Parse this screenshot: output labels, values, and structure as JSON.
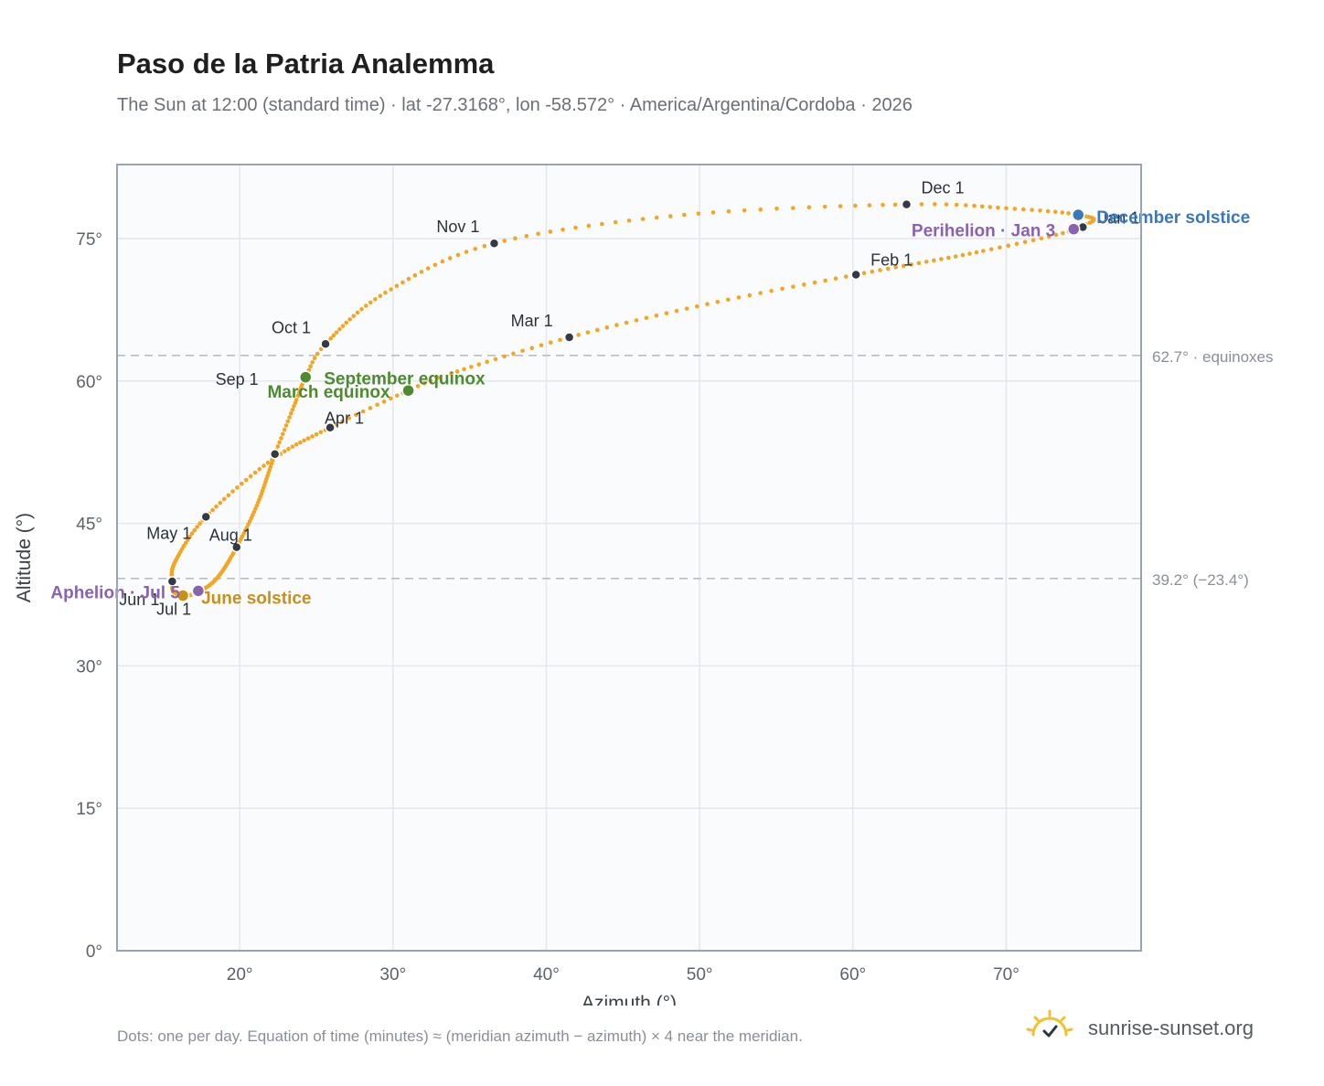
{
  "title": "Paso de la Patria Analemma",
  "subtitle": "The Sun at 12:00 (standard time) · lat -27.3168°, lon -58.572° · America/Argentina/Cordoba · 2026",
  "footnote": "Dots: one per day. Equation of time (minutes) ≈ (meridian azimuth − azimuth) × 4 near the meridian.",
  "brand": {
    "text": "sunrise-sunset.org",
    "icon": "sun-logo-icon",
    "color": "#f2c12e"
  },
  "colors": {
    "curve": "#f3a623",
    "month_marker": "#333a45",
    "equinox": "#4e8a2e",
    "june_solstice": "#c8901a",
    "december_solstice": "#3a78b9",
    "apsis": "#8a63b0",
    "reference_line": "#b9bec6",
    "plot_bg": "#f9fbfd",
    "grid": "#e3e8ee",
    "frame": "#9aa4b1"
  },
  "chart_data": {
    "type": "scatter",
    "title": "Paso de la Patria Analemma",
    "xlabel": "Azimuth (°)",
    "ylabel": "Altitude (°)",
    "xlim": [
      12.0,
      78.8
    ],
    "ylim": [
      0,
      82.8
    ],
    "xticks": [
      20,
      30,
      40,
      50,
      60,
      70
    ],
    "yticks": [
      0,
      15,
      30,
      45,
      60,
      75
    ],
    "xtick_labels": [
      "20°",
      "30°",
      "40°",
      "50°",
      "60°",
      "70°"
    ],
    "ytick_labels": [
      "0°",
      "15°",
      "30°",
      "45°",
      "60°",
      "75°"
    ],
    "grid": true,
    "curve_keypoints": [
      {
        "day": 1,
        "az": 75.0,
        "alt": 76.2
      },
      {
        "day": 15,
        "az": 68.5,
        "alt": 73.7
      },
      {
        "day": 32,
        "az": 60.2,
        "alt": 71.2
      },
      {
        "day": 46,
        "az": 50.5,
        "alt": 68.1
      },
      {
        "day": 60,
        "az": 41.5,
        "alt": 64.6
      },
      {
        "day": 74,
        "az": 33.8,
        "alt": 60.8
      },
      {
        "day": 79,
        "az": 31.0,
        "alt": 59.0
      },
      {
        "day": 91,
        "az": 25.9,
        "alt": 55.1
      },
      {
        "day": 105,
        "az": 22.1,
        "alt": 51.7
      },
      {
        "day": 121,
        "az": 17.8,
        "alt": 45.7
      },
      {
        "day": 136,
        "az": 15.8,
        "alt": 41.0
      },
      {
        "day": 152,
        "az": 15.6,
        "alt": 38.9
      },
      {
        "day": 162,
        "az": 15.7,
        "alt": 37.8
      },
      {
        "day": 172,
        "az": 16.3,
        "alt": 37.4
      },
      {
        "day": 182,
        "az": 17.2,
        "alt": 37.7
      },
      {
        "day": 196,
        "az": 18.5,
        "alt": 39.2
      },
      {
        "day": 213,
        "az": 19.8,
        "alt": 42.5
      },
      {
        "day": 228,
        "az": 21.2,
        "alt": 47.2
      },
      {
        "day": 244,
        "az": 22.3,
        "alt": 52.3
      },
      {
        "day": 258,
        "az": 23.7,
        "alt": 58.0
      },
      {
        "day": 266,
        "az": 24.3,
        "alt": 60.4
      },
      {
        "day": 274,
        "az": 25.6,
        "alt": 63.9
      },
      {
        "day": 290,
        "az": 29.5,
        "alt": 69.3
      },
      {
        "day": 305,
        "az": 36.6,
        "alt": 74.5
      },
      {
        "day": 320,
        "az": 49.0,
        "alt": 77.5
      },
      {
        "day": 335,
        "az": 63.5,
        "alt": 78.6
      },
      {
        "day": 345,
        "az": 70.0,
        "alt": 78.2
      },
      {
        "day": 355,
        "az": 74.7,
        "alt": 77.5
      },
      {
        "day": 365,
        "az": 75.2,
        "alt": 76.5
      }
    ],
    "month_markers": [
      {
        "label": "Jan 1",
        "az": 75.0,
        "alt": 76.2
      },
      {
        "label": "Feb 1",
        "az": 60.2,
        "alt": 71.2
      },
      {
        "label": "Mar 1",
        "az": 41.5,
        "alt": 64.6
      },
      {
        "label": "Apr 1",
        "az": 25.9,
        "alt": 55.1
      },
      {
        "label": "May 1",
        "az": 17.8,
        "alt": 45.7
      },
      {
        "label": "Jun 1",
        "az": 15.6,
        "alt": 38.9
      },
      {
        "label": "Jul 1",
        "az": 17.2,
        "alt": 37.7
      },
      {
        "label": "Aug 1",
        "az": 19.8,
        "alt": 42.5
      },
      {
        "label": "Sep 1",
        "az": 22.3,
        "alt": 52.3
      },
      {
        "label": "Oct 1",
        "az": 25.6,
        "alt": 63.9
      },
      {
        "label": "Nov 1",
        "az": 36.6,
        "alt": 74.5
      },
      {
        "label": "Dec 1",
        "az": 63.5,
        "alt": 78.6
      }
    ],
    "events": [
      {
        "label": "March equinox",
        "az": 31.0,
        "alt": 59.0,
        "color": "#4e8a2e"
      },
      {
        "label": "September equinox",
        "az": 24.3,
        "alt": 60.4,
        "color": "#4e8a2e"
      },
      {
        "label": "June solstice",
        "az": 16.3,
        "alt": 37.4,
        "color": "#c8901a"
      },
      {
        "label": "December solstice",
        "az": 74.7,
        "alt": 77.5,
        "color": "#3a78b9"
      },
      {
        "label": "Perihelion · Jan 3",
        "az": 74.4,
        "alt": 76.0,
        "color": "#8a63b0"
      },
      {
        "label": "Aphelion · Jul 5",
        "az": 17.3,
        "alt": 37.9,
        "color": "#8a63b0"
      }
    ],
    "reference_lines": [
      {
        "label": "62.7° · equinoxes",
        "alt": 62.7
      },
      {
        "label": "39.2° (−23.4°)",
        "alt": 39.2
      }
    ]
  }
}
